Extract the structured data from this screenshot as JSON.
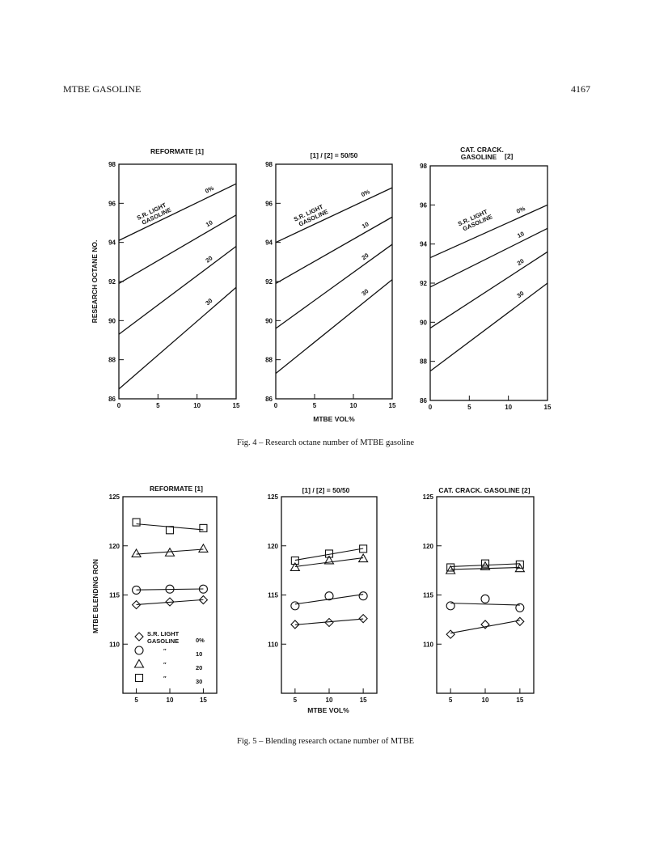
{
  "header": {
    "running_title": "MTBE GASOLINE",
    "page_number": "4167"
  },
  "fig4": {
    "caption": "Fig. 4 – Research octane number of MTBE gasoline",
    "ylabel": "RESEARCH OCTANE NO.",
    "xlabel": "MTBE VOL%"
  },
  "fig5": {
    "caption": "Fig. 5 – Blending research octane number of MTBE",
    "ylabel": "MTBE BLENDING RON",
    "xlabel": "MTBE VOL%"
  },
  "chart_data": [
    {
      "type": "line",
      "figure": "fig4",
      "title": "REFORMATE [1]",
      "xlim": [
        0,
        15
      ],
      "ylim": [
        86,
        98
      ],
      "xticks": [
        0,
        5,
        10,
        15
      ],
      "yticks": [
        86,
        88,
        90,
        92,
        94,
        96,
        98
      ],
      "grid": false,
      "annotation": "S.R. LIGHT GASOLINE",
      "series": [
        {
          "name": "0%",
          "x": [
            0,
            15
          ],
          "y": [
            94.1,
            97.0
          ]
        },
        {
          "name": "10",
          "x": [
            0,
            15
          ],
          "y": [
            91.9,
            95.4
          ]
        },
        {
          "name": "20",
          "x": [
            0,
            15
          ],
          "y": [
            89.3,
            93.8
          ]
        },
        {
          "name": "30",
          "x": [
            0,
            15
          ],
          "y": [
            86.5,
            91.7
          ]
        }
      ]
    },
    {
      "type": "line",
      "figure": "fig4",
      "title": "[1] / [2] = 50/50",
      "xlim": [
        0,
        15
      ],
      "ylim": [
        86,
        98
      ],
      "xticks": [
        0,
        5,
        10,
        15
      ],
      "yticks": [
        86,
        88,
        90,
        92,
        94,
        96,
        98
      ],
      "grid": false,
      "annotation": "S.R. LIGHT GASOLINE",
      "series": [
        {
          "name": "0%",
          "x": [
            0,
            15
          ],
          "y": [
            94.0,
            96.8
          ]
        },
        {
          "name": "10",
          "x": [
            0,
            15
          ],
          "y": [
            91.9,
            95.3
          ]
        },
        {
          "name": "20",
          "x": [
            0,
            15
          ],
          "y": [
            89.6,
            93.9
          ]
        },
        {
          "name": "30",
          "x": [
            0,
            15
          ],
          "y": [
            87.3,
            92.1
          ]
        }
      ]
    },
    {
      "type": "line",
      "figure": "fig4",
      "title": "CAT. CRACK. GASOLINE [2]",
      "xlim": [
        0,
        15
      ],
      "ylim": [
        86,
        98
      ],
      "xticks": [
        0,
        5,
        10,
        15
      ],
      "yticks": [
        86,
        88,
        90,
        92,
        94,
        96,
        98
      ],
      "grid": false,
      "annotation": "S.R. LIGHT GASOLINE",
      "series": [
        {
          "name": "0%",
          "x": [
            0,
            15
          ],
          "y": [
            93.3,
            96.0
          ]
        },
        {
          "name": "10",
          "x": [
            0,
            15
          ],
          "y": [
            91.8,
            94.8
          ]
        },
        {
          "name": "20",
          "x": [
            0,
            15
          ],
          "y": [
            89.7,
            93.6
          ]
        },
        {
          "name": "30",
          "x": [
            0,
            15
          ],
          "y": [
            87.5,
            92.0
          ]
        }
      ]
    },
    {
      "type": "scatter",
      "figure": "fig5",
      "title": "REFORMATE [1]",
      "xlim": [
        3,
        17
      ],
      "ylim": [
        105,
        125
      ],
      "xticks": [
        5,
        10,
        15
      ],
      "yticks": [
        110,
        115,
        120,
        125
      ],
      "grid": false,
      "legend": {
        "placement": "bottom-left",
        "entries": [
          {
            "marker": "diamond",
            "text": "S.R. LIGHT",
            "text2": "GASOLINE",
            "value": "0%"
          },
          {
            "marker": "circle",
            "text": "″",
            "value": "10"
          },
          {
            "marker": "triangle",
            "text": "″",
            "value": "20"
          },
          {
            "marker": "square",
            "text": "″",
            "value": "30"
          }
        ]
      },
      "series": [
        {
          "name": "0%",
          "marker": "diamond",
          "x": [
            5,
            10,
            15
          ],
          "y": [
            114.0,
            114.3,
            114.5
          ]
        },
        {
          "name": "10",
          "marker": "circle",
          "x": [
            5,
            10,
            15
          ],
          "y": [
            115.5,
            115.6,
            115.6
          ]
        },
        {
          "name": "20",
          "marker": "triangle",
          "x": [
            5,
            10,
            15
          ],
          "y": [
            119.2,
            119.3,
            119.7
          ]
        },
        {
          "name": "30",
          "marker": "square",
          "x": [
            5,
            10,
            15
          ],
          "y": [
            122.4,
            121.6,
            121.8
          ]
        }
      ]
    },
    {
      "type": "scatter",
      "figure": "fig5",
      "title": "[1] / [2] = 50/50",
      "xlim": [
        3,
        17
      ],
      "ylim": [
        105,
        125
      ],
      "xticks": [
        5,
        10,
        15
      ],
      "yticks": [
        110,
        115,
        120,
        125
      ],
      "grid": false,
      "series": [
        {
          "name": "0%",
          "marker": "diamond",
          "x": [
            5,
            10,
            15
          ],
          "y": [
            112.0,
            112.2,
            112.6
          ]
        },
        {
          "name": "10",
          "marker": "circle",
          "x": [
            5,
            10,
            15
          ],
          "y": [
            113.9,
            114.9,
            114.9
          ]
        },
        {
          "name": "20",
          "marker": "triangle",
          "x": [
            5,
            10,
            15
          ],
          "y": [
            117.8,
            118.5,
            118.7
          ]
        },
        {
          "name": "30",
          "marker": "square",
          "x": [
            5,
            10,
            15
          ],
          "y": [
            118.5,
            119.2,
            119.7
          ]
        }
      ]
    },
    {
      "type": "scatter",
      "figure": "fig5",
      "title": "CAT. CRACK. GASOLINE [2]",
      "xlim": [
        3,
        17
      ],
      "ylim": [
        105,
        125
      ],
      "xticks": [
        5,
        10,
        15
      ],
      "yticks": [
        110,
        115,
        120,
        125
      ],
      "grid": false,
      "series": [
        {
          "name": "0%",
          "marker": "diamond",
          "x": [
            5,
            10,
            15
          ],
          "y": [
            111.0,
            112.0,
            112.3
          ]
        },
        {
          "name": "10",
          "marker": "circle",
          "x": [
            5,
            10,
            15
          ],
          "y": [
            113.9,
            114.6,
            113.7
          ]
        },
        {
          "name": "20",
          "marker": "triangle",
          "x": [
            5,
            10,
            15
          ],
          "y": [
            117.5,
            117.9,
            117.7
          ]
        },
        {
          "name": "30",
          "marker": "square",
          "x": [
            5,
            10,
            15
          ],
          "y": [
            117.8,
            118.2,
            118.1
          ]
        }
      ]
    }
  ]
}
